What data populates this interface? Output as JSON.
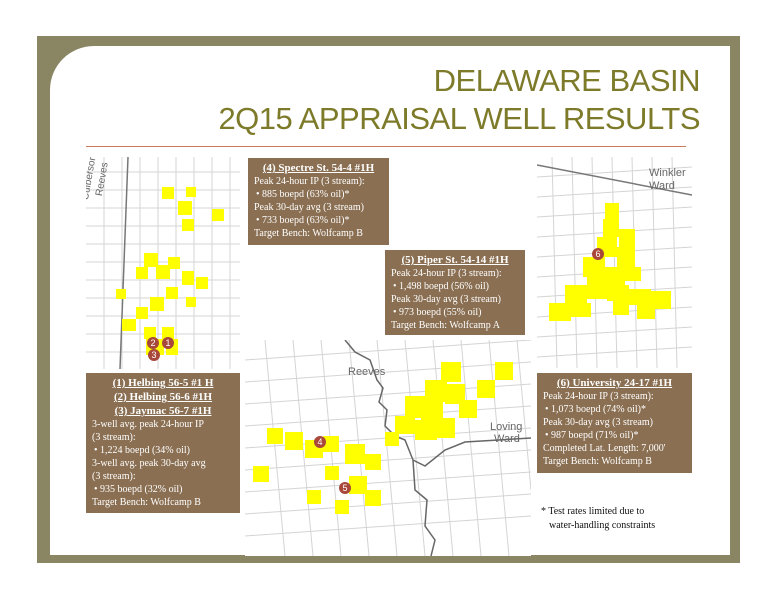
{
  "title": {
    "line1": "DELAWARE BASIN",
    "line2": "2Q15 APPRAISAL WELL RESULTS"
  },
  "maps": {
    "left": {
      "county_labels": [
        "Culberson",
        "Reeves"
      ],
      "markers": [
        "2",
        "1",
        "3"
      ]
    },
    "middle": {
      "county_labels": [
        "Reeves",
        "Loving",
        "Ward"
      ],
      "markers": [
        "4",
        "5"
      ]
    },
    "right": {
      "county_labels": [
        "Winkler",
        "Ward"
      ],
      "markers": [
        "6"
      ]
    }
  },
  "wells": {
    "spectre": {
      "heading": "(4) Spectre St. 54-4 #1H",
      "lines": [
        {
          "type": "text",
          "text": "Peak 24-hour IP (3 stream):"
        },
        {
          "type": "bullet",
          "text": "•    885 boepd (63% oil)*"
        },
        {
          "type": "text",
          "text": "Peak 30-day avg (3 stream)"
        },
        {
          "type": "bullet",
          "text": "•    733 boepd (63% oil)*"
        },
        {
          "type": "text",
          "text": "Target Bench:  Wolfcamp B"
        }
      ]
    },
    "piper": {
      "heading": "(5) Piper St. 54-14 #1H",
      "lines": [
        {
          "type": "text",
          "text": "Peak 24-hour IP (3 stream):"
        },
        {
          "type": "bullet",
          "text": "•    1,498 boepd (56% oil)"
        },
        {
          "type": "text",
          "text": "Peak 30-day avg (3 stream)"
        },
        {
          "type": "bullet",
          "text": "•       973 boepd (55% oil)"
        },
        {
          "type": "text",
          "text": "Target Bench:  Wolfcamp A"
        }
      ]
    },
    "helbing": {
      "headings": [
        "(1) Helbing 56-5 #1 H",
        "(2) Helbing 56-6 #1H",
        "(3) Jaymac 56-7 #1H"
      ],
      "lines": [
        {
          "type": "text",
          "text": "3-well avg. peak 24-hour IP"
        },
        {
          "type": "text",
          "text": "(3 stream):"
        },
        {
          "type": "bullet",
          "text": "•    1,224 boepd (34% oil)"
        },
        {
          "type": "text",
          "text": "3-well avg. peak 30-day avg"
        },
        {
          "type": "text",
          "text": "(3 stream):"
        },
        {
          "type": "bullet",
          "text": "•    935 boepd (32% oil)"
        },
        {
          "type": "text",
          "text": "Target Bench:  Wolfcamp B"
        }
      ]
    },
    "university": {
      "heading": "(6) University 24-17 #1H",
      "lines": [
        {
          "type": "text",
          "text": "Peak 24-hour IP (3 stream):"
        },
        {
          "type": "bullet",
          "text": "•    1,073 boepd (74% oil)*"
        },
        {
          "type": "text",
          "text": "Peak 30-day avg (3 stream)"
        },
        {
          "type": "bullet",
          "text": "•       987 boepd (71% oil)*"
        },
        {
          "type": "text",
          "text": "Completed Lat. Length: 7,000'"
        },
        {
          "type": "text",
          "text": "Target Bench:  Wolfcamp B"
        }
      ]
    }
  },
  "footnote": {
    "line1": "* Test rates limited due to",
    "line2": "water-handling  constraints"
  },
  "colors": {
    "frame": "#8a8563",
    "title": "#7d7b2a",
    "box": "#8a6f52",
    "acreage": "#ffff00",
    "marker": "#a8483a"
  }
}
